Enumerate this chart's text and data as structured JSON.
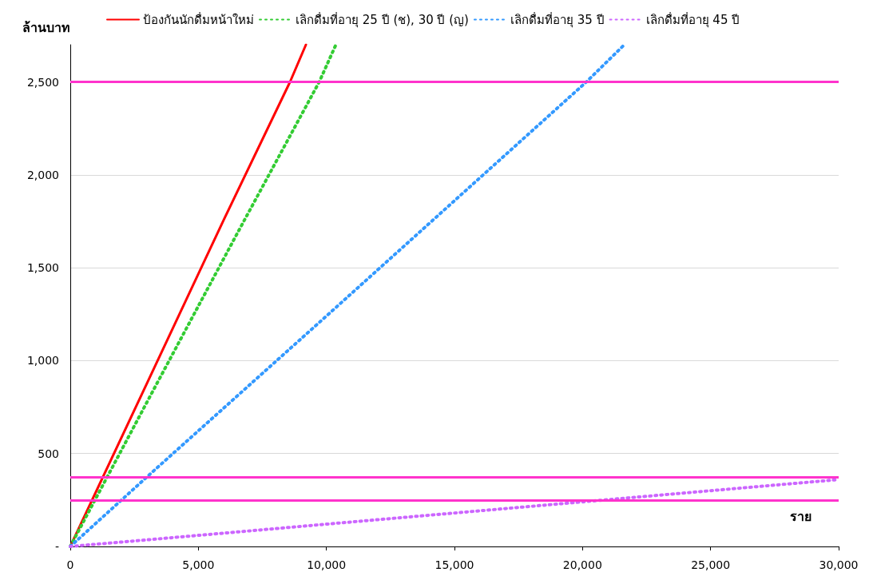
{
  "chart_data": {
    "type": "line",
    "xlabel": "ราย",
    "ylabel": "ล้านบาท",
    "xlim": [
      0,
      30000
    ],
    "xticks": [
      0,
      {
        "value": 5000,
        "label": "5,000"
      },
      {
        "value": 10000,
        "label": "10,000"
      },
      {
        "value": 15000,
        "label": "15,000"
      },
      {
        "value": 20000,
        "label": "20,000"
      },
      {
        "value": 25000,
        "label": "25,000"
      },
      {
        "value": 30000,
        "label": "30,000"
      }
    ],
    "ylim": [
      0,
      2700
    ],
    "yticks": [
      {
        "value": 0,
        "label": "-"
      },
      500,
      {
        "value": 1000,
        "label": "1,000"
      },
      {
        "value": 1500,
        "label": "1,500"
      },
      {
        "value": 2000,
        "label": "2,000"
      },
      {
        "value": 2500,
        "label": "2,500"
      }
    ],
    "grid": "y",
    "legend": "top",
    "marker": "none",
    "series": [
      {
        "name": "ป้องกันนักดื่มหน้าใหม่",
        "color": "#ff0000",
        "line_style": "solid",
        "x": [
          0,
          3000,
          6000,
          8580,
          9200
        ],
        "values": [
          0,
          880,
          1760,
          2500,
          2700
        ]
      },
      {
        "name": "เลิกดื่มที่อายุ 25 ปี (ช), 30 ปี (ญ)",
        "color": "#33cc33",
        "line_style": "dotted",
        "x": [
          0,
          3200,
          6500,
          9720,
          10370
        ],
        "values": [
          0,
          830,
          1680,
          2500,
          2700
        ]
      },
      {
        "name": "เลิกดื่มที่อายุ 35 ปี",
        "color": "#3399ff",
        "line_style": "dotted",
        "x": [
          0,
          3200,
          10000,
          20150,
          21630
        ],
        "values": [
          0,
          400,
          1240,
          2500,
          2700
        ]
      },
      {
        "name": "เลิกดื่มที่อายุ 45 ปี",
        "color": "#cc66ff",
        "line_style": "dotted",
        "x": [
          0,
          3200,
          10000,
          20000,
          30000
        ],
        "values": [
          0,
          38,
          120,
          240,
          360
        ]
      }
    ],
    "ref_lines": [
      {
        "axis": "y",
        "value": 2500,
        "color": "#ff33cc"
      },
      {
        "axis": "y",
        "value": 375,
        "color": "#ff33cc"
      },
      {
        "axis": "y",
        "value": 250,
        "color": "#ff33cc"
      }
    ]
  }
}
